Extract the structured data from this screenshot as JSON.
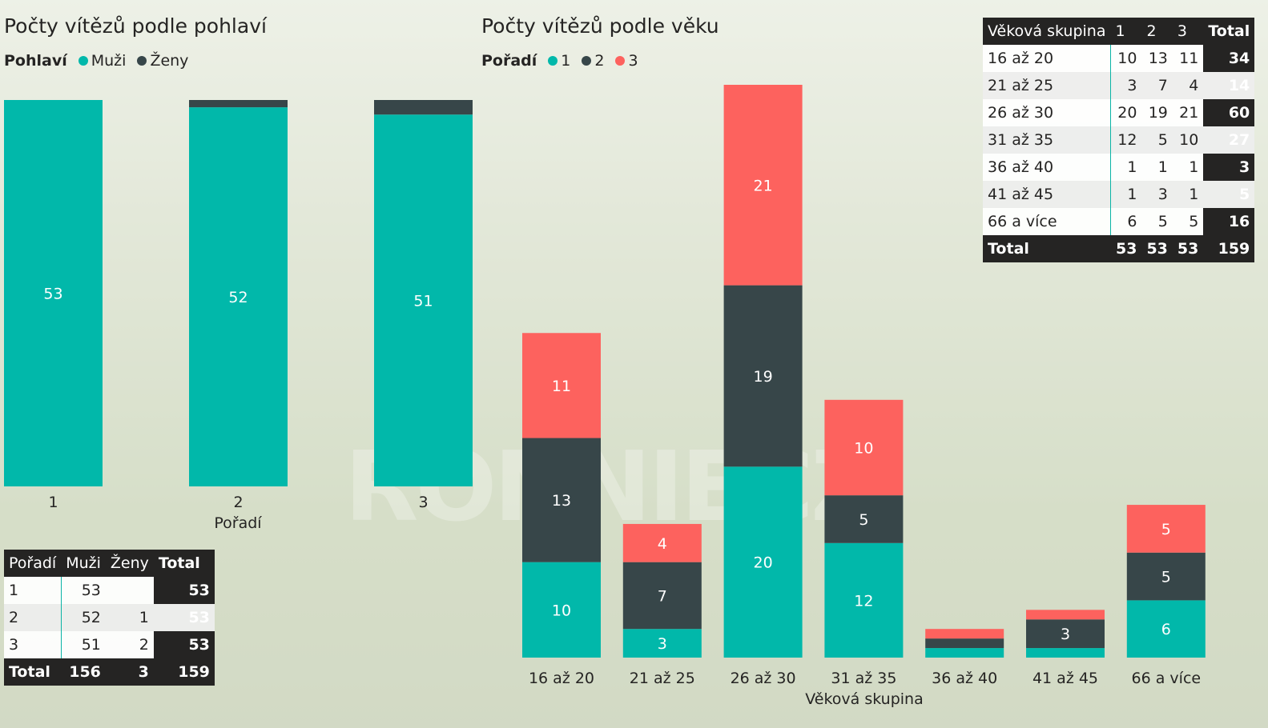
{
  "colors": {
    "teal": "#01B8AA",
    "dark": "#374649",
    "red": "#FD625E",
    "text": "#252423"
  },
  "watermark": "RONNIECZ",
  "gender_chart": {
    "title": "Počty vítězů podle pohlaví",
    "legend_title": "Pohlaví",
    "legend": [
      "Muži",
      "Ženy"
    ],
    "xlabel": "Pořadí"
  },
  "age_chart": {
    "title": "Počty vítězů podle věku",
    "legend_title": "Pořadí",
    "legend": [
      "1",
      "2",
      "3"
    ],
    "xlabel": "Věková skupina"
  },
  "chart_data": [
    {
      "type": "bar",
      "stacked": true,
      "title": "Počty vítězů podle pohlaví",
      "xlabel": "Pořadí",
      "legend_title": "Pohlaví",
      "categories": [
        "1",
        "2",
        "3"
      ],
      "series": [
        {
          "name": "Muži",
          "color": "#01B8AA",
          "values": [
            53,
            52,
            51
          ]
        },
        {
          "name": "Ženy",
          "color": "#374649",
          "values": [
            0,
            1,
            2
          ]
        }
      ],
      "ylim": [
        0,
        53
      ],
      "grid": false
    },
    {
      "type": "bar",
      "stacked": true,
      "title": "Počty vítězů podle věku",
      "xlabel": "Věková skupina",
      "legend_title": "Pořadí",
      "categories": [
        "16 až 20",
        "21 až 25",
        "26 až 30",
        "31 až 35",
        "36 až 40",
        "41 až 45",
        "66 a více"
      ],
      "series": [
        {
          "name": "1",
          "color": "#01B8AA",
          "values": [
            10,
            3,
            20,
            12,
            1,
            1,
            6
          ]
        },
        {
          "name": "2",
          "color": "#374649",
          "values": [
            13,
            7,
            19,
            5,
            1,
            3,
            5
          ]
        },
        {
          "name": "3",
          "color": "#FD625E",
          "values": [
            11,
            4,
            21,
            10,
            1,
            1,
            5
          ]
        }
      ],
      "ylim": [
        0,
        60
      ],
      "grid": false
    }
  ],
  "gender_table": {
    "headers": [
      "Pořadí",
      "Muži",
      "Ženy",
      "Total"
    ],
    "rows": [
      [
        "1",
        "53",
        "",
        "53"
      ],
      [
        "2",
        "52",
        "1",
        "53"
      ],
      [
        "3",
        "51",
        "2",
        "53"
      ]
    ],
    "total": [
      "Total",
      "156",
      "3",
      "159"
    ]
  },
  "age_table": {
    "headers": [
      "Věková skupina",
      "1",
      "2",
      "3",
      "Total"
    ],
    "rows": [
      [
        "16 až 20",
        "10",
        "13",
        "11",
        "34"
      ],
      [
        "21 až 25",
        "3",
        "7",
        "4",
        "14"
      ],
      [
        "26 až 30",
        "20",
        "19",
        "21",
        "60"
      ],
      [
        "31 až 35",
        "12",
        "5",
        "10",
        "27"
      ],
      [
        "36 až 40",
        "1",
        "1",
        "1",
        "3"
      ],
      [
        "41 až 45",
        "1",
        "3",
        "1",
        "5"
      ],
      [
        "66 a více",
        "6",
        "5",
        "5",
        "16"
      ]
    ],
    "total": [
      "Total",
      "53",
      "53",
      "53",
      "159"
    ]
  }
}
